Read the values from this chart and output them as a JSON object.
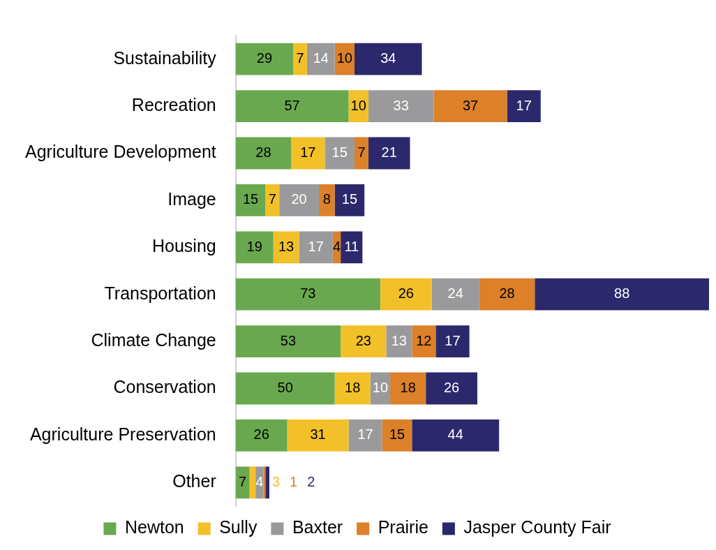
{
  "chart_data": {
    "type": "bar",
    "orientation": "horizontal",
    "stacked": true,
    "data_labels": true,
    "legend": "bottom",
    "categories": [
      "Sustainability",
      "Recreation",
      "Agriculture Development",
      "Image",
      "Housing",
      "Transportation",
      "Climate Change",
      "Conservation",
      "Agriculture Preservation",
      "Other"
    ],
    "series": [
      {
        "name": "Newton",
        "color": "#6aa84f",
        "values": [
          29,
          57,
          28,
          15,
          19,
          73,
          53,
          50,
          26,
          7
        ]
      },
      {
        "name": "Sully",
        "color": "#f2c029",
        "values": [
          7,
          10,
          17,
          7,
          13,
          26,
          23,
          18,
          31,
          3
        ]
      },
      {
        "name": "Baxter",
        "color": "#9a9a9c",
        "values": [
          14,
          33,
          15,
          20,
          17,
          24,
          13,
          10,
          17,
          4
        ]
      },
      {
        "name": "Prairie",
        "color": "#dc8029",
        "values": [
          10,
          37,
          7,
          8,
          4,
          28,
          12,
          18,
          15,
          1
        ]
      },
      {
        "name": "Jasper County Fair",
        "color": "#2c286c",
        "values": [
          34,
          17,
          21,
          15,
          11,
          88,
          17,
          26,
          44,
          2
        ]
      }
    ]
  }
}
